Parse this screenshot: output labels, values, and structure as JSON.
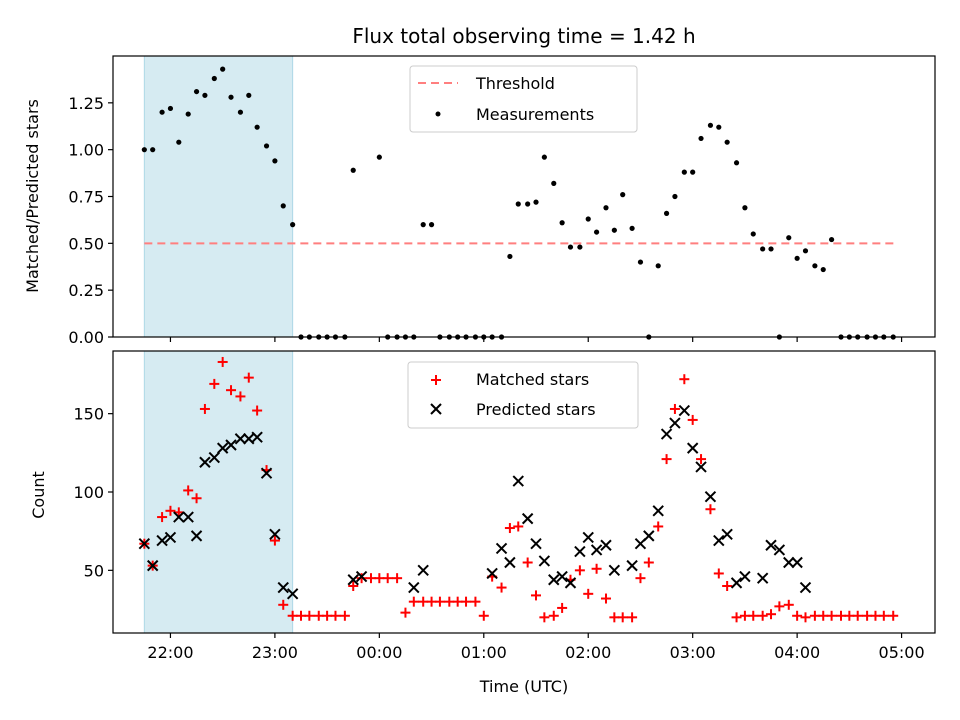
{
  "chart_data": [
    {
      "type": "scatter",
      "title": "Flux total observing time = 1.42 h",
      "ylabel": "Matched/Predicted stars",
      "xlabel": "",
      "xlim": [
        21.45,
        5.32
      ],
      "ylim": [
        0.0,
        1.5
      ],
      "yticks": [
        0.0,
        0.25,
        0.5,
        0.75,
        1.0,
        1.25
      ],
      "ytick_labels": [
        "0.00",
        "0.25",
        "0.50",
        "0.75",
        "1.00",
        "1.25"
      ],
      "highlight_span": {
        "x": [
          21.75,
          23.17
        ],
        "color": "#add8e6"
      },
      "legend": {
        "position": "upper center",
        "entries": [
          "Threshold",
          "Measurements"
        ]
      },
      "series": [
        {
          "name": "Threshold",
          "style": "dashed-line",
          "color": "#ff7f7f",
          "x": [
            21.75,
            4.95
          ],
          "y": [
            0.5,
            0.5
          ]
        },
        {
          "name": "Measurements",
          "style": "dot",
          "color": "#000000",
          "x": [
            21.75,
            21.83,
            21.92,
            22.0,
            22.08,
            22.17,
            22.25,
            22.33,
            22.42,
            22.5,
            22.58,
            22.67,
            22.75,
            22.83,
            22.92,
            23.0,
            23.08,
            23.17,
            23.25,
            23.33,
            23.42,
            23.5,
            23.58,
            23.67,
            23.75,
            0.0,
            0.08,
            0.17,
            0.25,
            0.33,
            0.42,
            0.5,
            0.58,
            0.67,
            0.75,
            0.83,
            0.92,
            1.0,
            1.08,
            1.17,
            1.25,
            1.33,
            1.42,
            1.5,
            1.58,
            1.67,
            1.75,
            1.83,
            1.92,
            2.0,
            2.08,
            2.17,
            2.25,
            2.33,
            2.42,
            2.5,
            2.58,
            2.67,
            2.75,
            2.83,
            2.92,
            3.0,
            3.08,
            3.17,
            3.25,
            3.33,
            3.42,
            3.5,
            3.58,
            3.67,
            3.75,
            3.83,
            3.92,
            4.0,
            4.08,
            4.17,
            4.25,
            4.33,
            4.42,
            4.5,
            4.58,
            4.67,
            4.75,
            4.83,
            4.92
          ],
          "y": [
            1.0,
            1.0,
            1.2,
            1.22,
            1.04,
            1.19,
            1.31,
            1.29,
            1.38,
            1.43,
            1.28,
            1.2,
            1.29,
            1.12,
            1.02,
            0.94,
            0.7,
            0.6,
            0.0,
            0.0,
            0.0,
            0.0,
            0.0,
            0.0,
            0.89,
            0.96,
            0.0,
            0.0,
            0.0,
            0.0,
            0.6,
            0.6,
            0.0,
            0.0,
            0.0,
            0.0,
            0.0,
            0.0,
            0.0,
            0.0,
            0.43,
            0.71,
            0.71,
            0.72,
            0.96,
            0.82,
            0.61,
            0.48,
            0.48,
            0.63,
            0.56,
            0.69,
            0.57,
            0.76,
            0.58,
            0.4,
            0.0,
            0.38,
            0.66,
            0.75,
            0.88,
            0.88,
            1.06,
            1.13,
            1.12,
            1.04,
            0.93,
            0.69,
            0.55,
            0.47,
            0.47,
            0.0,
            0.53,
            0.42,
            0.46,
            0.38,
            0.36,
            0.52,
            0.0,
            0.0,
            0.0,
            0.0,
            0.0,
            0.0,
            0.0
          ]
        }
      ]
    },
    {
      "type": "scatter",
      "title": "",
      "ylabel": "Count",
      "xlabel": "Time (UTC)",
      "xlim": [
        21.45,
        5.32
      ],
      "ylim": [
        10,
        190
      ],
      "yticks": [
        50,
        100,
        150
      ],
      "ytick_labels": [
        "50",
        "100",
        "150"
      ],
      "xticks": [
        22,
        23,
        0,
        1,
        2,
        3,
        4,
        5
      ],
      "xtick_labels": [
        "22:00",
        "23:00",
        "00:00",
        "01:00",
        "02:00",
        "03:00",
        "04:00",
        "05:00"
      ],
      "highlight_span": {
        "x": [
          21.75,
          23.17
        ],
        "color": "#add8e6"
      },
      "legend": {
        "position": "upper center",
        "entries": [
          "Matched stars",
          "Predicted stars"
        ]
      },
      "series": [
        {
          "name": "Matched stars",
          "style": "plus",
          "color": "#ff0000",
          "x": [
            21.75,
            21.83,
            21.92,
            22.0,
            22.08,
            22.17,
            22.25,
            22.33,
            22.42,
            22.5,
            22.58,
            22.67,
            22.75,
            22.83,
            22.92,
            23.0,
            23.08,
            23.17,
            23.25,
            23.33,
            23.42,
            23.5,
            23.58,
            23.67,
            23.75,
            23.83,
            23.92,
            0.0,
            0.08,
            0.17,
            0.25,
            0.33,
            0.42,
            0.5,
            0.58,
            0.67,
            0.75,
            0.83,
            0.92,
            1.0,
            1.08,
            1.17,
            1.25,
            1.33,
            1.42,
            1.5,
            1.58,
            1.67,
            1.75,
            1.83,
            1.92,
            2.0,
            2.08,
            2.17,
            2.25,
            2.33,
            2.42,
            2.5,
            2.58,
            2.67,
            2.75,
            2.83,
            2.92,
            3.0,
            3.08,
            3.17,
            3.25,
            3.33,
            3.42,
            3.5,
            3.58,
            3.67,
            3.75,
            3.83,
            3.92,
            4.0,
            4.08,
            4.17,
            4.25,
            4.33,
            4.42,
            4.5,
            4.58,
            4.67,
            4.75,
            4.83,
            4.92
          ],
          "y": [
            67,
            53,
            84,
            88,
            87,
            101,
            96,
            153,
            169,
            183,
            165,
            161,
            173,
            152,
            114,
            69,
            28,
            21,
            21,
            21,
            21,
            21,
            21,
            21,
            40,
            45,
            45,
            45,
            45,
            45,
            23,
            30,
            30,
            30,
            30,
            30,
            30,
            30,
            30,
            21,
            46,
            39,
            77,
            78,
            55,
            34,
            20,
            21,
            26,
            44,
            50,
            35,
            51,
            32,
            20,
            20,
            20,
            45,
            55,
            78,
            121,
            153,
            172,
            146,
            121,
            89,
            48,
            40,
            20,
            21,
            21,
            21,
            22,
            27,
            28,
            21,
            20,
            21,
            21,
            21,
            21,
            21,
            21,
            21,
            21,
            21,
            21
          ]
        },
        {
          "name": "Predicted stars",
          "style": "x",
          "color": "#000000",
          "x": [
            21.75,
            21.83,
            21.92,
            22.0,
            22.08,
            22.17,
            22.25,
            22.33,
            22.42,
            22.5,
            22.58,
            22.67,
            22.75,
            22.83,
            22.92,
            23.0,
            23.08,
            23.17,
            23.75,
            23.83,
            0.33,
            0.42,
            1.08,
            1.17,
            1.25,
            1.33,
            1.42,
            1.5,
            1.58,
            1.67,
            1.75,
            1.83,
            1.92,
            2.0,
            2.08,
            2.17,
            2.25,
            2.42,
            2.5,
            2.58,
            2.67,
            2.75,
            2.83,
            2.92,
            3.0,
            3.08,
            3.17,
            3.25,
            3.33,
            3.42,
            3.5,
            3.67,
            3.75,
            3.83,
            3.92,
            4.0,
            4.08
          ],
          "y": [
            67,
            53,
            69,
            71,
            84,
            84,
            72,
            119,
            122,
            128,
            130,
            134,
            134,
            135,
            112,
            73,
            39,
            35,
            44,
            46,
            39,
            50,
            48,
            64,
            55,
            107,
            83,
            67,
            56,
            44,
            46,
            42,
            62,
            71,
            63,
            66,
            50,
            53,
            67,
            72,
            88,
            137,
            144,
            152,
            128,
            116,
            97,
            69,
            73,
            42,
            46,
            45,
            66,
            63,
            55,
            55,
            39
          ]
        }
      ]
    }
  ]
}
